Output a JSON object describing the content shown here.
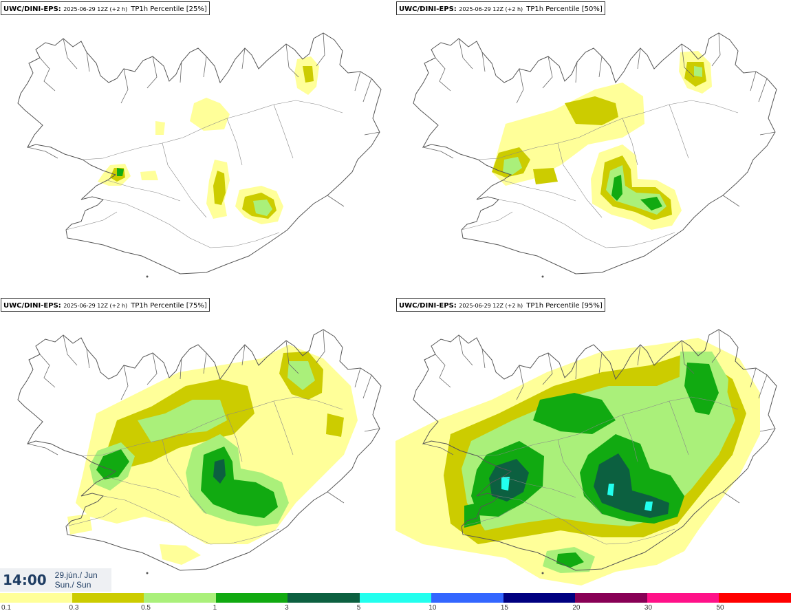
{
  "panels": [
    {
      "model": "UWC/DINI-EPS",
      "run": "2025-06-29 12Z (+2 h)",
      "description": "TP1h Percentile [25%]",
      "percentile": 25
    },
    {
      "model": "UWC/DINI-EPS",
      "run": "2025-06-29 12Z (+2 h)",
      "description": "TP1h Percentile [50%]",
      "percentile": 50
    },
    {
      "model": "UWC/DINI-EPS",
      "run": "2025-06-29 12Z (+2 h)",
      "description": "TP1h Percentile [75%]",
      "percentile": 75
    },
    {
      "model": "UWC/DINI-EPS",
      "run": "2025-06-29 12Z (+2 h)",
      "description": "TP1h Percentile [95%]",
      "percentile": 95
    }
  ],
  "valid_time": {
    "time": "14:00",
    "date_line1": "29.jún./ Jun",
    "date_line2": "Sun./ Sun"
  },
  "legend": {
    "ticks": [
      "0.1",
      "0.3",
      "0.5",
      "1",
      "3",
      "5",
      "10",
      "15",
      "20",
      "30",
      "50"
    ],
    "colors": [
      "#ffff99",
      "#cccc00",
      "#aaf07a",
      "#11aa11",
      "#0c6040",
      "#22ffee",
      "#3366ff",
      "#000080",
      "#880055",
      "#ff1188",
      "#ff0000"
    ]
  },
  "colors": {
    "coastline": "#555555",
    "roads": "#777777",
    "date_text": "#1f3d63",
    "time_box_bg": "#eef0f3"
  }
}
